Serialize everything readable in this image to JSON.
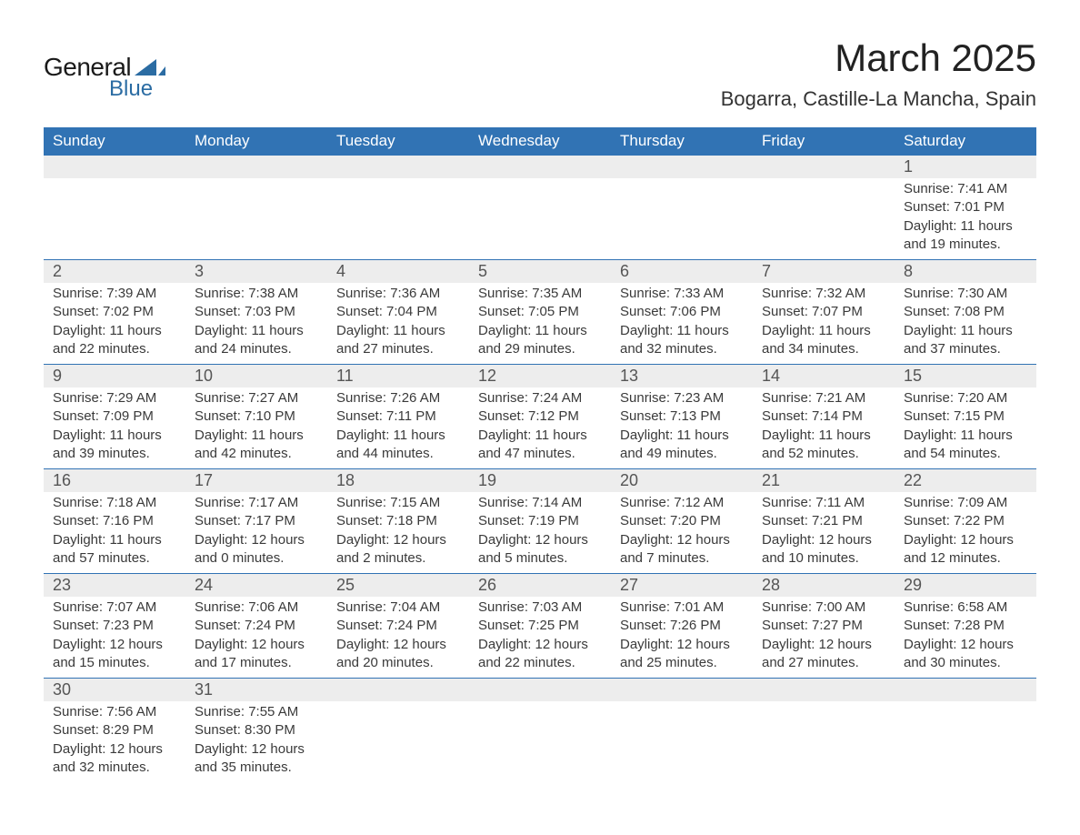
{
  "logo": {
    "word1": "General",
    "word2": "Blue",
    "accent_color": "#2b6ca3"
  },
  "title": "March 2025",
  "location": "Bogarra, Castille-La Mancha, Spain",
  "header_bg": "#3173b4",
  "header_fg": "#ffffff",
  "daynum_bg": "#ededed",
  "row_border": "#3173b4",
  "weekdays": [
    "Sunday",
    "Monday",
    "Tuesday",
    "Wednesday",
    "Thursday",
    "Friday",
    "Saturday"
  ],
  "weeks": [
    [
      null,
      null,
      null,
      null,
      null,
      null,
      {
        "n": "1",
        "sunrise": "7:41 AM",
        "sunset": "7:01 PM",
        "day_h": "11",
        "day_m": "19"
      }
    ],
    [
      {
        "n": "2",
        "sunrise": "7:39 AM",
        "sunset": "7:02 PM",
        "day_h": "11",
        "day_m": "22"
      },
      {
        "n": "3",
        "sunrise": "7:38 AM",
        "sunset": "7:03 PM",
        "day_h": "11",
        "day_m": "24"
      },
      {
        "n": "4",
        "sunrise": "7:36 AM",
        "sunset": "7:04 PM",
        "day_h": "11",
        "day_m": "27"
      },
      {
        "n": "5",
        "sunrise": "7:35 AM",
        "sunset": "7:05 PM",
        "day_h": "11",
        "day_m": "29"
      },
      {
        "n": "6",
        "sunrise": "7:33 AM",
        "sunset": "7:06 PM",
        "day_h": "11",
        "day_m": "32"
      },
      {
        "n": "7",
        "sunrise": "7:32 AM",
        "sunset": "7:07 PM",
        "day_h": "11",
        "day_m": "34"
      },
      {
        "n": "8",
        "sunrise": "7:30 AM",
        "sunset": "7:08 PM",
        "day_h": "11",
        "day_m": "37"
      }
    ],
    [
      {
        "n": "9",
        "sunrise": "7:29 AM",
        "sunset": "7:09 PM",
        "day_h": "11",
        "day_m": "39"
      },
      {
        "n": "10",
        "sunrise": "7:27 AM",
        "sunset": "7:10 PM",
        "day_h": "11",
        "day_m": "42"
      },
      {
        "n": "11",
        "sunrise": "7:26 AM",
        "sunset": "7:11 PM",
        "day_h": "11",
        "day_m": "44"
      },
      {
        "n": "12",
        "sunrise": "7:24 AM",
        "sunset": "7:12 PM",
        "day_h": "11",
        "day_m": "47"
      },
      {
        "n": "13",
        "sunrise": "7:23 AM",
        "sunset": "7:13 PM",
        "day_h": "11",
        "day_m": "49"
      },
      {
        "n": "14",
        "sunrise": "7:21 AM",
        "sunset": "7:14 PM",
        "day_h": "11",
        "day_m": "52"
      },
      {
        "n": "15",
        "sunrise": "7:20 AM",
        "sunset": "7:15 PM",
        "day_h": "11",
        "day_m": "54"
      }
    ],
    [
      {
        "n": "16",
        "sunrise": "7:18 AM",
        "sunset": "7:16 PM",
        "day_h": "11",
        "day_m": "57"
      },
      {
        "n": "17",
        "sunrise": "7:17 AM",
        "sunset": "7:17 PM",
        "day_h": "12",
        "day_m": "0"
      },
      {
        "n": "18",
        "sunrise": "7:15 AM",
        "sunset": "7:18 PM",
        "day_h": "12",
        "day_m": "2"
      },
      {
        "n": "19",
        "sunrise": "7:14 AM",
        "sunset": "7:19 PM",
        "day_h": "12",
        "day_m": "5"
      },
      {
        "n": "20",
        "sunrise": "7:12 AM",
        "sunset": "7:20 PM",
        "day_h": "12",
        "day_m": "7"
      },
      {
        "n": "21",
        "sunrise": "7:11 AM",
        "sunset": "7:21 PM",
        "day_h": "12",
        "day_m": "10"
      },
      {
        "n": "22",
        "sunrise": "7:09 AM",
        "sunset": "7:22 PM",
        "day_h": "12",
        "day_m": "12"
      }
    ],
    [
      {
        "n": "23",
        "sunrise": "7:07 AM",
        "sunset": "7:23 PM",
        "day_h": "12",
        "day_m": "15"
      },
      {
        "n": "24",
        "sunrise": "7:06 AM",
        "sunset": "7:24 PM",
        "day_h": "12",
        "day_m": "17"
      },
      {
        "n": "25",
        "sunrise": "7:04 AM",
        "sunset": "7:24 PM",
        "day_h": "12",
        "day_m": "20"
      },
      {
        "n": "26",
        "sunrise": "7:03 AM",
        "sunset": "7:25 PM",
        "day_h": "12",
        "day_m": "22"
      },
      {
        "n": "27",
        "sunrise": "7:01 AM",
        "sunset": "7:26 PM",
        "day_h": "12",
        "day_m": "25"
      },
      {
        "n": "28",
        "sunrise": "7:00 AM",
        "sunset": "7:27 PM",
        "day_h": "12",
        "day_m": "27"
      },
      {
        "n": "29",
        "sunrise": "6:58 AM",
        "sunset": "7:28 PM",
        "day_h": "12",
        "day_m": "30"
      }
    ],
    [
      {
        "n": "30",
        "sunrise": "7:56 AM",
        "sunset": "8:29 PM",
        "day_h": "12",
        "day_m": "32"
      },
      {
        "n": "31",
        "sunrise": "7:55 AM",
        "sunset": "8:30 PM",
        "day_h": "12",
        "day_m": "35"
      },
      null,
      null,
      null,
      null,
      null
    ]
  ],
  "labels": {
    "sunrise": "Sunrise: ",
    "sunset": "Sunset: ",
    "daylight_a": "Daylight: ",
    "daylight_b": " hours and ",
    "daylight_c": " minutes."
  }
}
